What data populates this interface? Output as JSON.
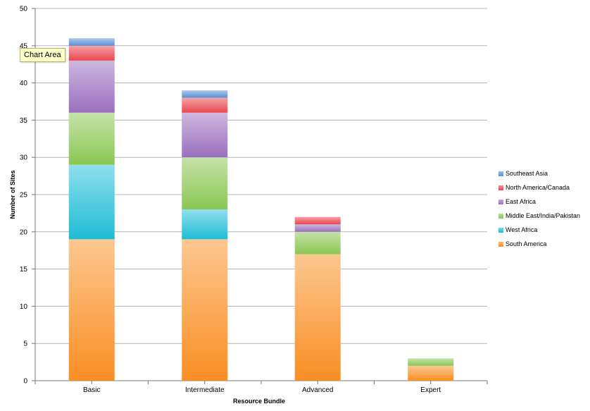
{
  "tooltip": "Chart Area",
  "chart_data": {
    "type": "bar",
    "stacked": true,
    "categories": [
      "Basic",
      "Intermediate",
      "Advanced",
      "Expert"
    ],
    "series": [
      {
        "name": "South America",
        "values": [
          19,
          19,
          17,
          2
        ],
        "color": "#f98e23"
      },
      {
        "name": "West Africa",
        "values": [
          10,
          4,
          0,
          0
        ],
        "color": "#1fbcd6"
      },
      {
        "name": "Middle East/India/Pakistan",
        "values": [
          7,
          7,
          3,
          1
        ],
        "color": "#8ac653"
      },
      {
        "name": "East Africa",
        "values": [
          7,
          6,
          1,
          0
        ],
        "color": "#9b6fbf"
      },
      {
        "name": "North America/Canada",
        "values": [
          2,
          2,
          1,
          0
        ],
        "color": "#e8474e"
      },
      {
        "name": "Southeast Asia",
        "values": [
          1,
          1,
          0,
          0
        ],
        "color": "#5a8fd6"
      }
    ],
    "title": "",
    "xlabel": "Resource Bundle",
    "ylabel": "Number of Sites",
    "ylim": [
      0,
      50
    ],
    "ytick_step": 5,
    "grid": true,
    "legend_position": "right"
  }
}
